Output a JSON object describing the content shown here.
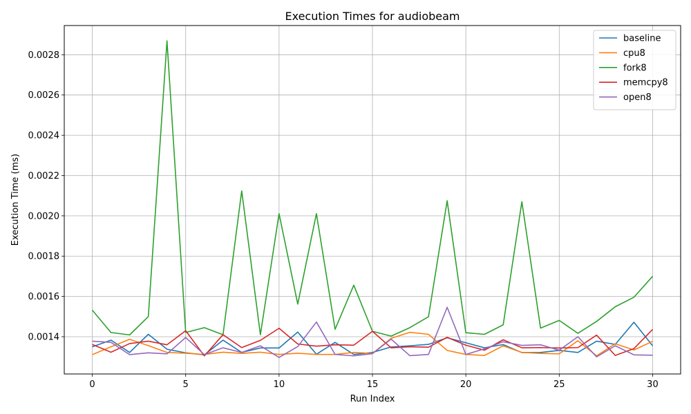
{
  "chart_data": {
    "type": "line",
    "title": "Execution Times for audiobeam",
    "xlabel": "Run Index",
    "ylabel": "Execution Time (ms)",
    "xlim": [
      -1.5,
      31.5
    ],
    "ylim": [
      0.001215,
      0.002945
    ],
    "xticks": [
      0,
      5,
      10,
      15,
      20,
      25,
      30
    ],
    "yticks": [
      0.0014,
      0.0016,
      0.0018,
      0.002,
      0.0022,
      0.0024,
      0.0026,
      0.0028
    ],
    "ytick_labels": [
      "0.0014",
      "0.0016",
      "0.0018",
      "0.0020",
      "0.0022",
      "0.0024",
      "0.0026",
      "0.0028"
    ],
    "grid": true,
    "legend_position": "top-right",
    "x": [
      0,
      1,
      2,
      3,
      4,
      5,
      6,
      7,
      8,
      9,
      10,
      11,
      12,
      13,
      14,
      15,
      16,
      17,
      18,
      19,
      20,
      21,
      22,
      23,
      24,
      25,
      26,
      27,
      28,
      29,
      30
    ],
    "series": [
      {
        "name": "baseline",
        "color": "#1f77b4",
        "values": [
          0.00135,
          0.001383,
          0.001322,
          0.001412,
          0.001338,
          0.00132,
          0.00131,
          0.001383,
          0.001322,
          0.001344,
          0.001344,
          0.001423,
          0.001313,
          0.001372,
          0.001312,
          0.001322,
          0.001349,
          0.001355,
          0.001362,
          0.001395,
          0.00137,
          0.001345,
          0.001361,
          0.001321,
          0.001322,
          0.001332,
          0.001322,
          0.001378,
          0.001362,
          0.001472,
          0.001355
        ]
      },
      {
        "name": "cpu8",
        "color": "#ff7f0e",
        "values": [
          0.001311,
          0.00135,
          0.001387,
          0.001356,
          0.001322,
          0.001318,
          0.001312,
          0.001323,
          0.001317,
          0.001323,
          0.001312,
          0.001318,
          0.001312,
          0.001312,
          0.001322,
          0.001317,
          0.001392,
          0.001422,
          0.001412,
          0.001332,
          0.001312,
          0.001307,
          0.001355,
          0.001322,
          0.001317,
          0.001315,
          0.00138,
          0.001305,
          0.001365,
          0.001334,
          0.001377
        ]
      },
      {
        "name": "fork8",
        "color": "#2ca02c",
        "values": [
          0.001532,
          0.001421,
          0.001409,
          0.0015,
          0.002869,
          0.001421,
          0.001445,
          0.00141,
          0.002124,
          0.00141,
          0.002011,
          0.001562,
          0.002011,
          0.001437,
          0.001656,
          0.001427,
          0.001403,
          0.001445,
          0.001499,
          0.002075,
          0.00142,
          0.001412,
          0.001459,
          0.00207,
          0.001443,
          0.001481,
          0.001417,
          0.001476,
          0.001549,
          0.001596,
          0.0017
        ]
      },
      {
        "name": "memcpy8",
        "color": "#d62728",
        "values": [
          0.001362,
          0.001323,
          0.001366,
          0.001378,
          0.00136,
          0.00143,
          0.001305,
          0.00141,
          0.001346,
          0.001382,
          0.001442,
          0.001364,
          0.001353,
          0.00136,
          0.001358,
          0.001427,
          0.001345,
          0.00135,
          0.001348,
          0.001397,
          0.001358,
          0.001333,
          0.001385,
          0.001345,
          0.001346,
          0.001344,
          0.001346,
          0.001408,
          0.001307,
          0.001341,
          0.001436
        ]
      },
      {
        "name": "open8",
        "color": "#9467bd",
        "values": [
          0.001378,
          0.001372,
          0.001311,
          0.00132,
          0.001315,
          0.001396,
          0.001311,
          0.001345,
          0.001322,
          0.001355,
          0.001297,
          0.001351,
          0.001473,
          0.001312,
          0.001305,
          0.001316,
          0.001388,
          0.001306,
          0.001312,
          0.001546,
          0.001312,
          0.00134,
          0.001375,
          0.001357,
          0.00136,
          0.001333,
          0.0014,
          0.0013,
          0.001355,
          0.00131,
          0.001308
        ]
      }
    ]
  }
}
